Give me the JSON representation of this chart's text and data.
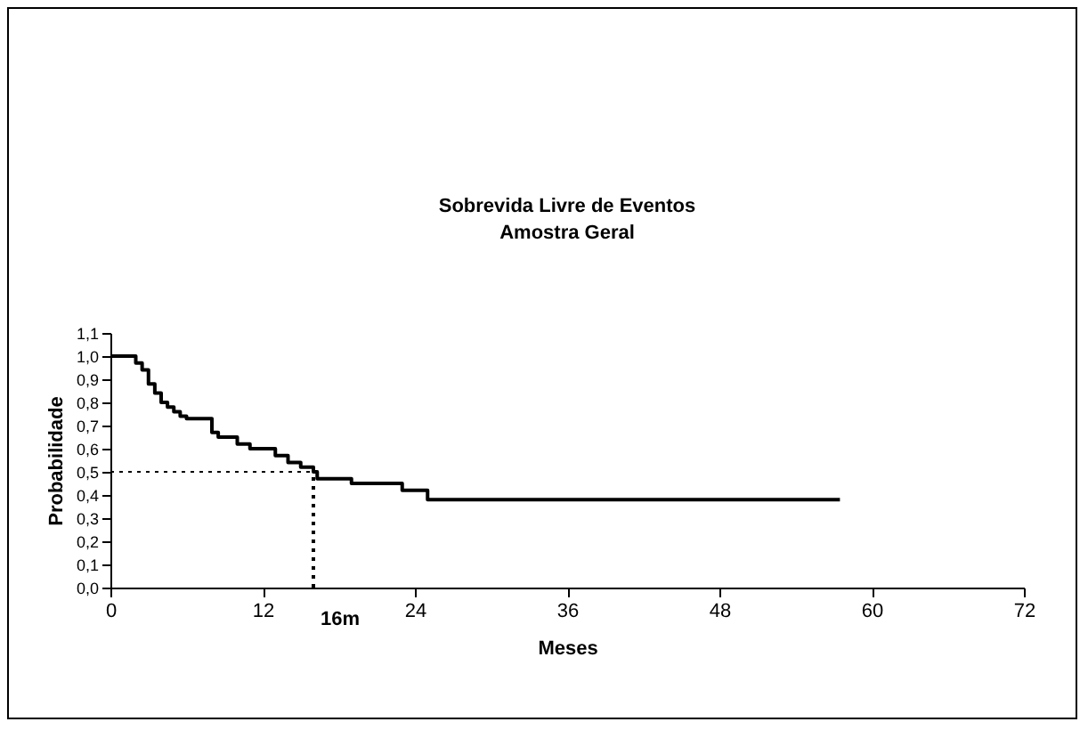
{
  "chart_data": {
    "type": "step",
    "title": "Sobrevida Livre de Eventos",
    "subtitle": "Amostra Geral",
    "xlabel": "Meses",
    "ylabel": "Probabilidade",
    "x": [
      0,
      2,
      2.5,
      3,
      3.5,
      4,
      4.5,
      5,
      5.5,
      6,
      8,
      8.5,
      10,
      11,
      13,
      14,
      15,
      16,
      16.3,
      19,
      23,
      25,
      57.5
    ],
    "series": [
      {
        "color": "#000000",
        "values": [
          1.0,
          0.97,
          0.94,
          0.88,
          0.84,
          0.8,
          0.78,
          0.76,
          0.74,
          0.73,
          0.67,
          0.65,
          0.62,
          0.6,
          0.57,
          0.54,
          0.52,
          0.5,
          0.47,
          0.45,
          0.42,
          0.38,
          0.38
        ]
      }
    ],
    "xlim": [
      0,
      72
    ],
    "xticks": [
      0,
      12,
      24,
      36,
      48,
      60,
      72
    ],
    "ylim": [
      0,
      1.1
    ],
    "yticks": [
      {
        "value": 0,
        "label": "0,0"
      },
      {
        "value": 0.1,
        "label": "0,1"
      },
      {
        "value": 0.2,
        "label": "0,2"
      },
      {
        "value": 0.3,
        "label": "0,3"
      },
      {
        "value": 0.4,
        "label": "0,4"
      },
      {
        "value": 0.5,
        "label": "0,5"
      },
      {
        "value": 0.6,
        "label": "0,6"
      },
      {
        "value": 0.7,
        "label": "0,7"
      },
      {
        "value": 0.8,
        "label": "0,8"
      },
      {
        "value": 0.9,
        "label": "0,9"
      },
      {
        "value": 1.0,
        "label": "1,0"
      },
      {
        "value": 1.1,
        "label": "1,1"
      }
    ],
    "ref_lines": [
      {
        "axis": "y",
        "value": 0.5,
        "line_style": "dotted"
      },
      {
        "axis": "x",
        "value": 16,
        "label": "16m",
        "line_style": "dotted"
      }
    ],
    "grid": false,
    "legend": false,
    "marker": "none",
    "line_style": "solid"
  }
}
